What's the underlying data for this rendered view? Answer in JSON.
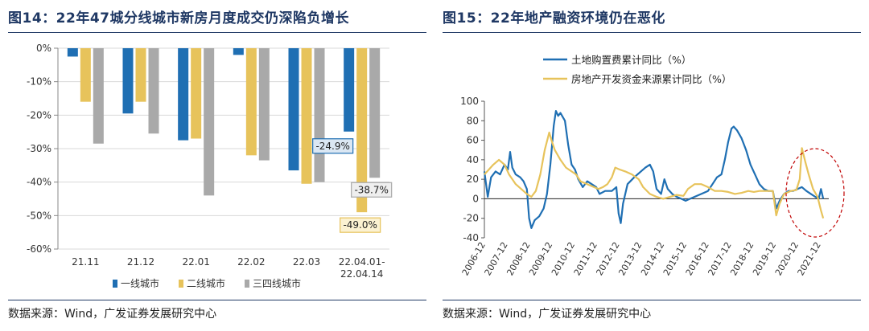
{
  "left": {
    "title": "图14：22年47城分线城市新房月度成交仍深陷负增长",
    "source": "数据来源：Wind，广发证券发展研究中心"
  },
  "right": {
    "title": "图15：22年地产融资环境仍在恶化",
    "source": "数据来源：Wind，广发证券发展研究中心"
  },
  "chart_data": [
    {
      "type": "bar",
      "categories": [
        "21.11",
        "21.12",
        "22.01",
        "22.02",
        "22.03",
        "22.04.01-\n22.04.14"
      ],
      "series": [
        {
          "name": "一线城市",
          "values": [
            -2.5,
            -19.5,
            -27.5,
            -2.0,
            -36.5,
            -24.9
          ],
          "color": "#1f6fb3"
        },
        {
          "name": "二线城市",
          "values": [
            -16.0,
            -16.0,
            -27.0,
            -32.0,
            -40.5,
            -49.0
          ],
          "color": "#e7c35b"
        },
        {
          "name": "三四线城市",
          "values": [
            -28.5,
            -25.5,
            -44.0,
            -33.5,
            -40.0,
            -38.7
          ],
          "color": "#a9a9a9"
        }
      ],
      "yticks": [
        "0%",
        "-10%",
        "-20%",
        "-30%",
        "-40%",
        "-50%",
        "-60%"
      ],
      "ylim": [
        -60,
        0
      ],
      "data_labels": [
        {
          "series": 0,
          "category": 5,
          "text": "-24.9%"
        },
        {
          "series": 1,
          "category": 5,
          "text": "-49.0%"
        },
        {
          "series": 2,
          "category": 5,
          "text": "-38.7%"
        }
      ],
      "legend": "bottom"
    },
    {
      "type": "line",
      "ylim": [
        -40,
        100
      ],
      "yticks": [
        100,
        80,
        60,
        40,
        20,
        0,
        -20,
        -40
      ],
      "xticks": [
        "2006-12",
        "2007-12",
        "2008-12",
        "2009-12",
        "2010-12",
        "2011-12",
        "2012-12",
        "2013-12",
        "2014-12",
        "2015-12",
        "2016-12",
        "2017-12",
        "2018-12",
        "2019-12",
        "2020-12",
        "2021-12"
      ],
      "xrange": [
        2006.9,
        2022.3
      ],
      "legend": "top-left",
      "annotation": "dashed red ellipse highlighting 2020-2022",
      "series": [
        {
          "name": "土地购置费累计同比（%）",
          "color": "#1f6fb3",
          "points": [
            [
              2006.9,
              28
            ],
            [
              2007.05,
              2
            ],
            [
              2007.2,
              22
            ],
            [
              2007.4,
              28
            ],
            [
              2007.6,
              25
            ],
            [
              2007.8,
              35
            ],
            [
              2007.95,
              30
            ],
            [
              2008.05,
              48
            ],
            [
              2008.15,
              32
            ],
            [
              2008.3,
              25
            ],
            [
              2008.5,
              22
            ],
            [
              2008.65,
              18
            ],
            [
              2008.8,
              10
            ],
            [
              2008.9,
              -20
            ],
            [
              2009.0,
              -30
            ],
            [
              2009.15,
              -22
            ],
            [
              2009.35,
              -18
            ],
            [
              2009.55,
              -10
            ],
            [
              2009.7,
              5
            ],
            [
              2009.85,
              35
            ],
            [
              2010.0,
              75
            ],
            [
              2010.1,
              90
            ],
            [
              2010.2,
              85
            ],
            [
              2010.3,
              88
            ],
            [
              2010.5,
              80
            ],
            [
              2010.65,
              55
            ],
            [
              2010.8,
              35
            ],
            [
              2010.95,
              30
            ],
            [
              2011.1,
              20
            ],
            [
              2011.3,
              12
            ],
            [
              2011.5,
              18
            ],
            [
              2011.7,
              15
            ],
            [
              2011.9,
              12
            ],
            [
              2012.05,
              5
            ],
            [
              2012.3,
              8
            ],
            [
              2012.6,
              8
            ],
            [
              2012.8,
              12
            ],
            [
              2012.9,
              -15
            ],
            [
              2013.0,
              -25
            ],
            [
              2013.1,
              -5
            ],
            [
              2013.3,
              15
            ],
            [
              2013.6,
              22
            ],
            [
              2013.9,
              28
            ],
            [
              2014.1,
              32
            ],
            [
              2014.3,
              35
            ],
            [
              2014.45,
              28
            ],
            [
              2014.6,
              10
            ],
            [
              2014.8,
              5
            ],
            [
              2014.95,
              20
            ],
            [
              2015.1,
              10
            ],
            [
              2015.3,
              5
            ],
            [
              2015.5,
              2
            ],
            [
              2015.7,
              0
            ],
            [
              2015.9,
              -2
            ],
            [
              2016.1,
              0
            ],
            [
              2016.3,
              2
            ],
            [
              2016.6,
              5
            ],
            [
              2016.9,
              8
            ],
            [
              2017.1,
              15
            ],
            [
              2017.3,
              22
            ],
            [
              2017.5,
              25
            ],
            [
              2017.65,
              40
            ],
            [
              2017.8,
              58
            ],
            [
              2017.95,
              72
            ],
            [
              2018.05,
              74
            ],
            [
              2018.2,
              70
            ],
            [
              2018.4,
              62
            ],
            [
              2018.6,
              50
            ],
            [
              2018.8,
              35
            ],
            [
              2019.0,
              25
            ],
            [
              2019.2,
              15
            ],
            [
              2019.4,
              10
            ],
            [
              2019.6,
              8
            ],
            [
              2019.8,
              8
            ],
            [
              2019.95,
              -10
            ],
            [
              2020.1,
              -2
            ],
            [
              2020.3,
              5
            ],
            [
              2020.5,
              8
            ],
            [
              2020.7,
              8
            ],
            [
              2020.9,
              10
            ],
            [
              2021.1,
              12
            ],
            [
              2021.3,
              8
            ],
            [
              2021.5,
              5
            ],
            [
              2021.7,
              2
            ],
            [
              2021.85,
              0
            ],
            [
              2021.95,
              10
            ],
            [
              2022.05,
              0
            ]
          ]
        },
        {
          "name": "房地产开发资金来源累计同比（%）",
          "color": "#e7c35b",
          "points": [
            [
              2006.9,
              25
            ],
            [
              2007.1,
              30
            ],
            [
              2007.3,
              35
            ],
            [
              2007.55,
              40
            ],
            [
              2007.8,
              35
            ],
            [
              2008.0,
              25
            ],
            [
              2008.3,
              15
            ],
            [
              2008.55,
              10
            ],
            [
              2008.8,
              5
            ],
            [
              2009.0,
              2
            ],
            [
              2009.2,
              8
            ],
            [
              2009.4,
              25
            ],
            [
              2009.6,
              50
            ],
            [
              2009.8,
              68
            ],
            [
              2009.9,
              60
            ],
            [
              2010.05,
              50
            ],
            [
              2010.3,
              40
            ],
            [
              2010.55,
              32
            ],
            [
              2010.8,
              28
            ],
            [
              2011.0,
              25
            ],
            [
              2011.2,
              18
            ],
            [
              2011.5,
              15
            ],
            [
              2011.8,
              12
            ],
            [
              2012.0,
              10
            ],
            [
              2012.2,
              12
            ],
            [
              2012.4,
              15
            ],
            [
              2012.6,
              22
            ],
            [
              2012.75,
              32
            ],
            [
              2012.95,
              30
            ],
            [
              2013.2,
              28
            ],
            [
              2013.5,
              25
            ],
            [
              2013.8,
              20
            ],
            [
              2014.0,
              12
            ],
            [
              2014.3,
              5
            ],
            [
              2014.6,
              2
            ],
            [
              2014.9,
              0
            ],
            [
              2015.2,
              2
            ],
            [
              2015.5,
              4
            ],
            [
              2015.8,
              3
            ],
            [
              2016.0,
              10
            ],
            [
              2016.3,
              15
            ],
            [
              2016.6,
              15
            ],
            [
              2016.9,
              12
            ],
            [
              2017.2,
              8
            ],
            [
              2017.5,
              8
            ],
            [
              2017.8,
              7
            ],
            [
              2018.1,
              5
            ],
            [
              2018.4,
              6
            ],
            [
              2018.7,
              8
            ],
            [
              2018.95,
              7
            ],
            [
              2019.2,
              8
            ],
            [
              2019.5,
              8
            ],
            [
              2019.8,
              8
            ],
            [
              2019.95,
              -17
            ],
            [
              2020.1,
              -5
            ],
            [
              2020.3,
              5
            ],
            [
              2020.6,
              8
            ],
            [
              2020.85,
              9
            ],
            [
              2021.0,
              20
            ],
            [
              2021.1,
              52
            ],
            [
              2021.25,
              38
            ],
            [
              2021.4,
              25
            ],
            [
              2021.6,
              10
            ],
            [
              2021.8,
              2
            ],
            [
              2021.95,
              -12
            ],
            [
              2022.05,
              -20
            ]
          ]
        }
      ]
    }
  ]
}
